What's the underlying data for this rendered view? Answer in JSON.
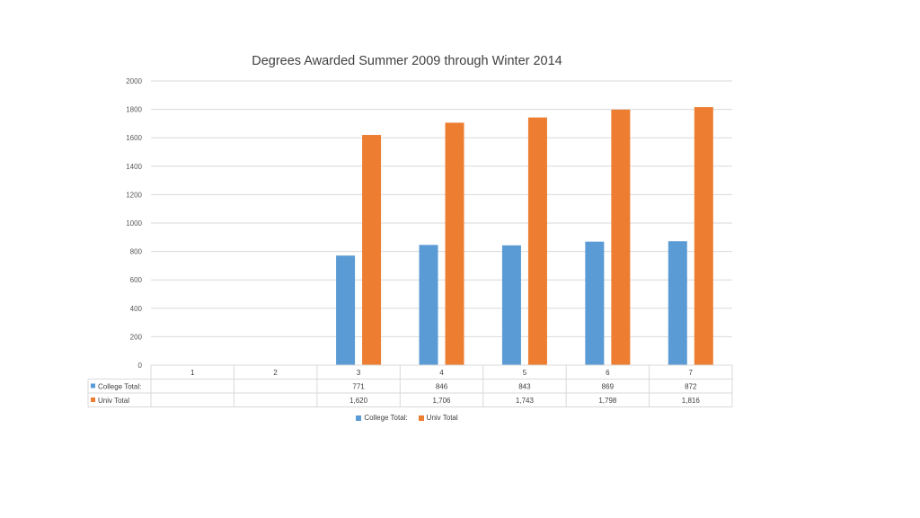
{
  "chart_data": {
    "type": "bar",
    "title": "Degrees Awarded Summer 2009 through Winter 2014",
    "categories": [
      "1",
      "2",
      "3",
      "4",
      "5",
      "6",
      "7"
    ],
    "series": [
      {
        "name": "College Total:",
        "color": "#5B9BD5",
        "values": [
          null,
          null,
          771,
          846,
          843,
          869,
          872
        ],
        "labels": [
          "",
          "",
          "771",
          "846",
          "843",
          "869",
          "872"
        ]
      },
      {
        "name": "Univ Total",
        "color": "#ED7D31",
        "values": [
          null,
          null,
          1620,
          1706,
          1743,
          1798,
          1816
        ],
        "labels": [
          "",
          "",
          "1,620",
          "1,706",
          "1,743",
          "1,798",
          "1,816"
        ]
      }
    ],
    "ylim": [
      0,
      2000
    ],
    "yticks": [
      "0",
      "200",
      "400",
      "600",
      "800",
      "1000",
      "1200",
      "1400",
      "1600",
      "1800",
      "2000"
    ],
    "grid": true,
    "legend": "bottom",
    "data_table": true
  }
}
